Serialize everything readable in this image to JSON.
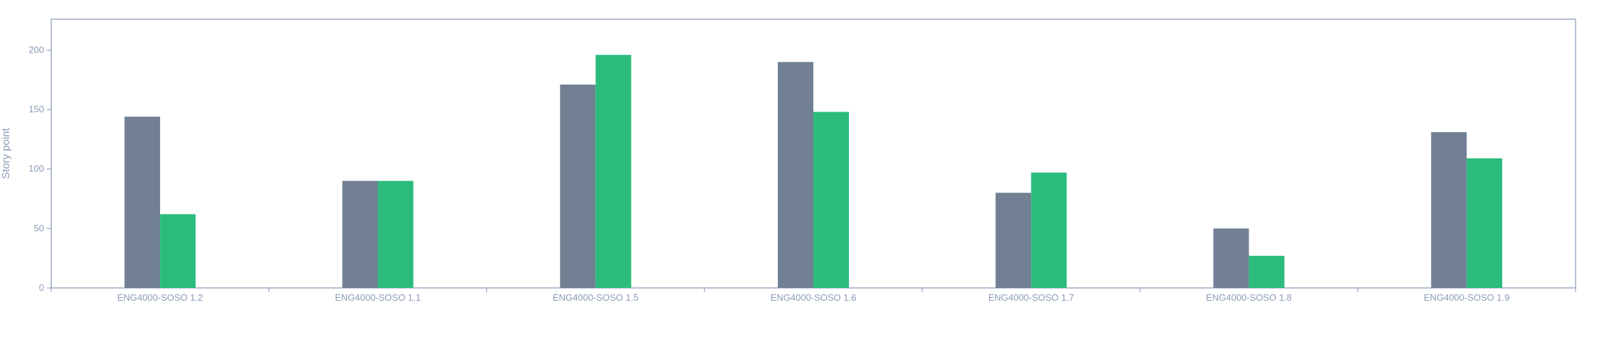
{
  "chart_data": {
    "type": "bar",
    "ylabel": "Story point",
    "xlabel": "",
    "categories": [
      "ENG4000-SOSO 1.2",
      "ENG4000-SOSO 1.1",
      "ENG4000-SOSO 1.5",
      "ENG4000-SOSO 1.6",
      "ENG4000-SOSO 1.7",
      "ENG4000-SOSO 1.8",
      "ENG4000-SOSO 1.9"
    ],
    "series": [
      {
        "values": [
          144,
          90,
          171,
          190,
          80,
          50,
          131
        ],
        "color": "#718093"
      },
      {
        "values": [
          62,
          90,
          196,
          148,
          97,
          27,
          109
        ],
        "color": "#2bbc7c"
      }
    ],
    "yticks": [
      0,
      50,
      100,
      150,
      200
    ],
    "ylim": [
      0,
      226
    ],
    "grid": false,
    "legend": "none"
  }
}
